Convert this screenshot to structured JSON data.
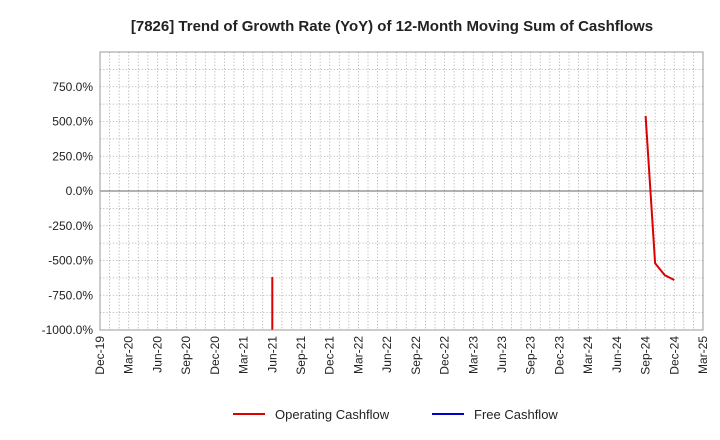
{
  "chart_data": {
    "type": "line",
    "title": "[7826]  Trend of Growth Rate (YoY) of 12-Month Moving Sum of Cashflows",
    "xlabel": "",
    "ylabel": "",
    "ylim": [
      -1000,
      1000
    ],
    "y_ticks": [
      750,
      500,
      250,
      0,
      -250,
      -500,
      -750,
      -1000
    ],
    "y_tick_labels": [
      "750.0%",
      "500.0%",
      "250.0%",
      "0.0%",
      "-250.0%",
      "-500.0%",
      "-750.0%",
      "-1000.0%"
    ],
    "x_tick_labels": [
      "Dec-19",
      "Mar-20",
      "Jun-20",
      "Sep-20",
      "Dec-20",
      "Mar-21",
      "Jun-21",
      "Sep-21",
      "Dec-21",
      "Mar-22",
      "Jun-22",
      "Sep-22",
      "Dec-22",
      "Mar-23",
      "Jun-23",
      "Sep-23",
      "Dec-23",
      "Mar-24",
      "Jun-24",
      "Sep-24",
      "Dec-24",
      "Mar-25"
    ],
    "grid": true,
    "legend_position": "bottom",
    "series": [
      {
        "name": "Operating Cashflow",
        "color": "#dd0000",
        "points": [
          {
            "x": "Jun-21",
            "y": -620
          },
          {
            "x": "Jun-21",
            "y": -1000
          },
          null,
          {
            "x": "Sep-24",
            "y": 540
          },
          {
            "x": "Oct-24",
            "y": -520
          },
          {
            "x": "Nov-24",
            "y": -605
          },
          {
            "x": "Dec-24",
            "y": -640
          }
        ]
      },
      {
        "name": "Free Cashflow",
        "color": "#0000cc",
        "points": []
      }
    ]
  }
}
